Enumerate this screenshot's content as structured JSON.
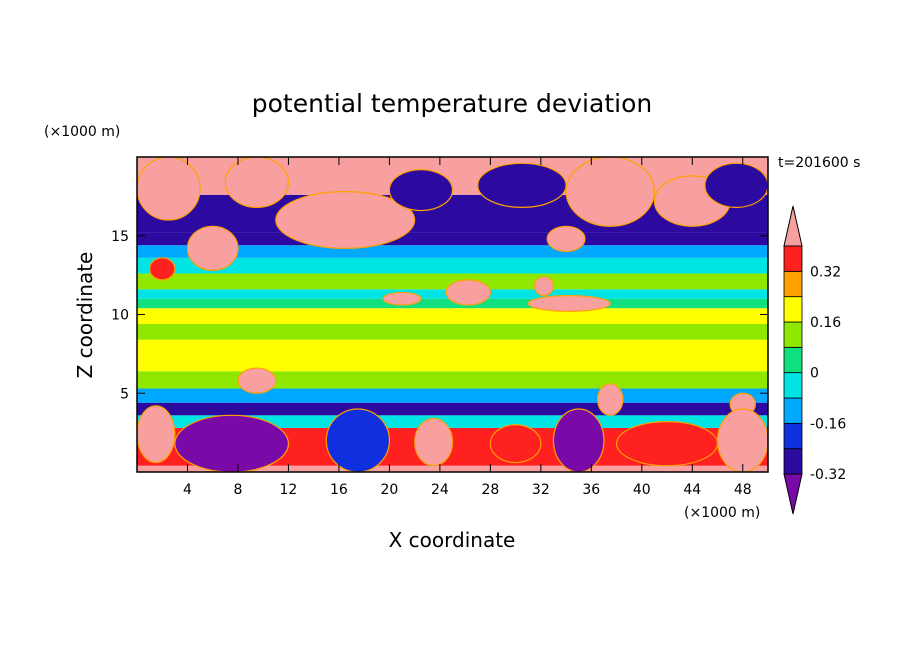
{
  "chart_data": {
    "type": "heatmap",
    "title": "potential temperature deviation",
    "xlabel": "X coordinate",
    "ylabel": "Z coordinate",
    "x_unit": "(×1000 m)",
    "y_unit": "(×1000 m)",
    "time_label": "t=201600 s",
    "xlim": [
      0,
      50
    ],
    "ylim": [
      0,
      20
    ],
    "x_ticks": [
      4,
      8,
      12,
      16,
      20,
      24,
      28,
      32,
      36,
      40,
      44,
      48
    ],
    "y_ticks": [
      5,
      10,
      15
    ],
    "colorbar": {
      "levels": [
        -0.4,
        -0.32,
        -0.24,
        -0.16,
        -0.08,
        0,
        0.08,
        0.16,
        0.24,
        0.32,
        0.4
      ],
      "labels": [
        "0.32",
        "0.16",
        "0",
        "-0.16",
        "-0.32"
      ],
      "label_values": [
        0.32,
        0.16,
        0,
        -0.16,
        -0.32
      ],
      "colors": [
        "#7a0aa8",
        "#2c0aa0",
        "#1030e0",
        "#00a8ff",
        "#00e4e4",
        "#10e080",
        "#90e800",
        "#ffff00",
        "#ffa000",
        "#ff2020",
        "#f8a0a0"
      ]
    },
    "bands": [
      {
        "z": [
          0,
          0.4
        ],
        "value": 0.4
      },
      {
        "z": [
          0.4,
          2.8
        ],
        "value": 0.24
      },
      {
        "z": [
          2.8,
          3.6
        ],
        "value": -0.16
      },
      {
        "z": [
          3.6,
          4.4
        ],
        "value": -0.36
      },
      {
        "z": [
          4.4,
          5.3
        ],
        "value": -0.24
      },
      {
        "z": [
          5.3,
          6.4
        ],
        "value": 0.04
      },
      {
        "z": [
          6.4,
          8.4
        ],
        "value": 0.12
      },
      {
        "z": [
          8.4,
          9.4
        ],
        "value": 0.06
      },
      {
        "z": [
          9.4,
          10.4
        ],
        "value": 0.1
      },
      {
        "z": [
          10.4,
          11.0
        ],
        "value": -0.06
      },
      {
        "z": [
          11.0,
          11.6
        ],
        "value": -0.14
      },
      {
        "z": [
          11.6,
          12.6
        ],
        "value": 0.02
      },
      {
        "z": [
          12.6,
          13.6
        ],
        "value": -0.1
      },
      {
        "z": [
          13.6,
          14.4
        ],
        "value": -0.2
      },
      {
        "z": [
          14.4,
          15.2
        ],
        "value": -0.34
      },
      {
        "z": [
          15.2,
          17.6
        ],
        "value": -0.38
      },
      {
        "z": [
          17.6,
          20
        ],
        "value": 0.4
      }
    ],
    "features": [
      {
        "x": [
          0,
          5
        ],
        "z": [
          16,
          20
        ],
        "value": 0.4
      },
      {
        "x": [
          7,
          12
        ],
        "z": [
          16.8,
          20
        ],
        "value": 0.4
      },
      {
        "x": [
          11,
          22
        ],
        "z": [
          14.2,
          17.8
        ],
        "value": 0.4
      },
      {
        "x": [
          4,
          8
        ],
        "z": [
          12.8,
          15.6
        ],
        "value": 0.4
      },
      {
        "x": [
          34,
          41
        ],
        "z": [
          15.6,
          20
        ],
        "value": 0.4
      },
      {
        "x": [
          41,
          47
        ],
        "z": [
          15.6,
          18.8
        ],
        "value": 0.4
      },
      {
        "x": [
          45,
          50
        ],
        "z": [
          16.8,
          19.6
        ],
        "value": -0.36
      },
      {
        "x": [
          20,
          25
        ],
        "z": [
          16.6,
          19.2
        ],
        "value": -0.36
      },
      {
        "x": [
          27,
          34
        ],
        "z": [
          16.8,
          19.6
        ],
        "value": -0.36
      },
      {
        "x": [
          32.5,
          35.5
        ],
        "z": [
          14,
          15.6
        ],
        "value": 0.4
      },
      {
        "x": [
          24.5,
          28
        ],
        "z": [
          10.6,
          12.2
        ],
        "value": 0.4
      },
      {
        "x": [
          31.5,
          33
        ],
        "z": [
          11.2,
          12.4
        ],
        "value": 0.4
      },
      {
        "x": [
          31,
          37.5
        ],
        "z": [
          10.2,
          11.2
        ],
        "value": 0.4
      },
      {
        "x": [
          19.5,
          22.5
        ],
        "z": [
          10.6,
          11.4
        ],
        "value": 0.4
      },
      {
        "x": [
          1,
          3
        ],
        "z": [
          12.2,
          13.6
        ],
        "value": 0.3
      },
      {
        "x": [
          8,
          11
        ],
        "z": [
          5,
          6.6
        ],
        "value": 0.4
      },
      {
        "x": [
          36.5,
          38.5
        ],
        "z": [
          3.6,
          5.6
        ],
        "value": 0.4
      },
      {
        "x": [
          47,
          49
        ],
        "z": [
          3.6,
          5
        ],
        "value": 0.4
      },
      {
        "x": [
          0,
          3
        ],
        "z": [
          0.6,
          4.2
        ],
        "value": 0.4
      },
      {
        "x": [
          3,
          12
        ],
        "z": [
          0,
          3.6
        ],
        "value": -0.4
      },
      {
        "x": [
          15,
          20
        ],
        "z": [
          0,
          4
        ],
        "value": -0.32
      },
      {
        "x": [
          33,
          37
        ],
        "z": [
          0,
          4
        ],
        "value": -0.4
      },
      {
        "x": [
          38,
          46
        ],
        "z": [
          0.4,
          3.2
        ],
        "value": 0.24
      },
      {
        "x": [
          46,
          50
        ],
        "z": [
          0,
          4
        ],
        "value": 0.4
      },
      {
        "x": [
          22,
          25
        ],
        "z": [
          0.4,
          3.4
        ],
        "value": 0.4
      },
      {
        "x": [
          28,
          32
        ],
        "z": [
          0.6,
          3
        ],
        "value": 0.3
      }
    ]
  }
}
